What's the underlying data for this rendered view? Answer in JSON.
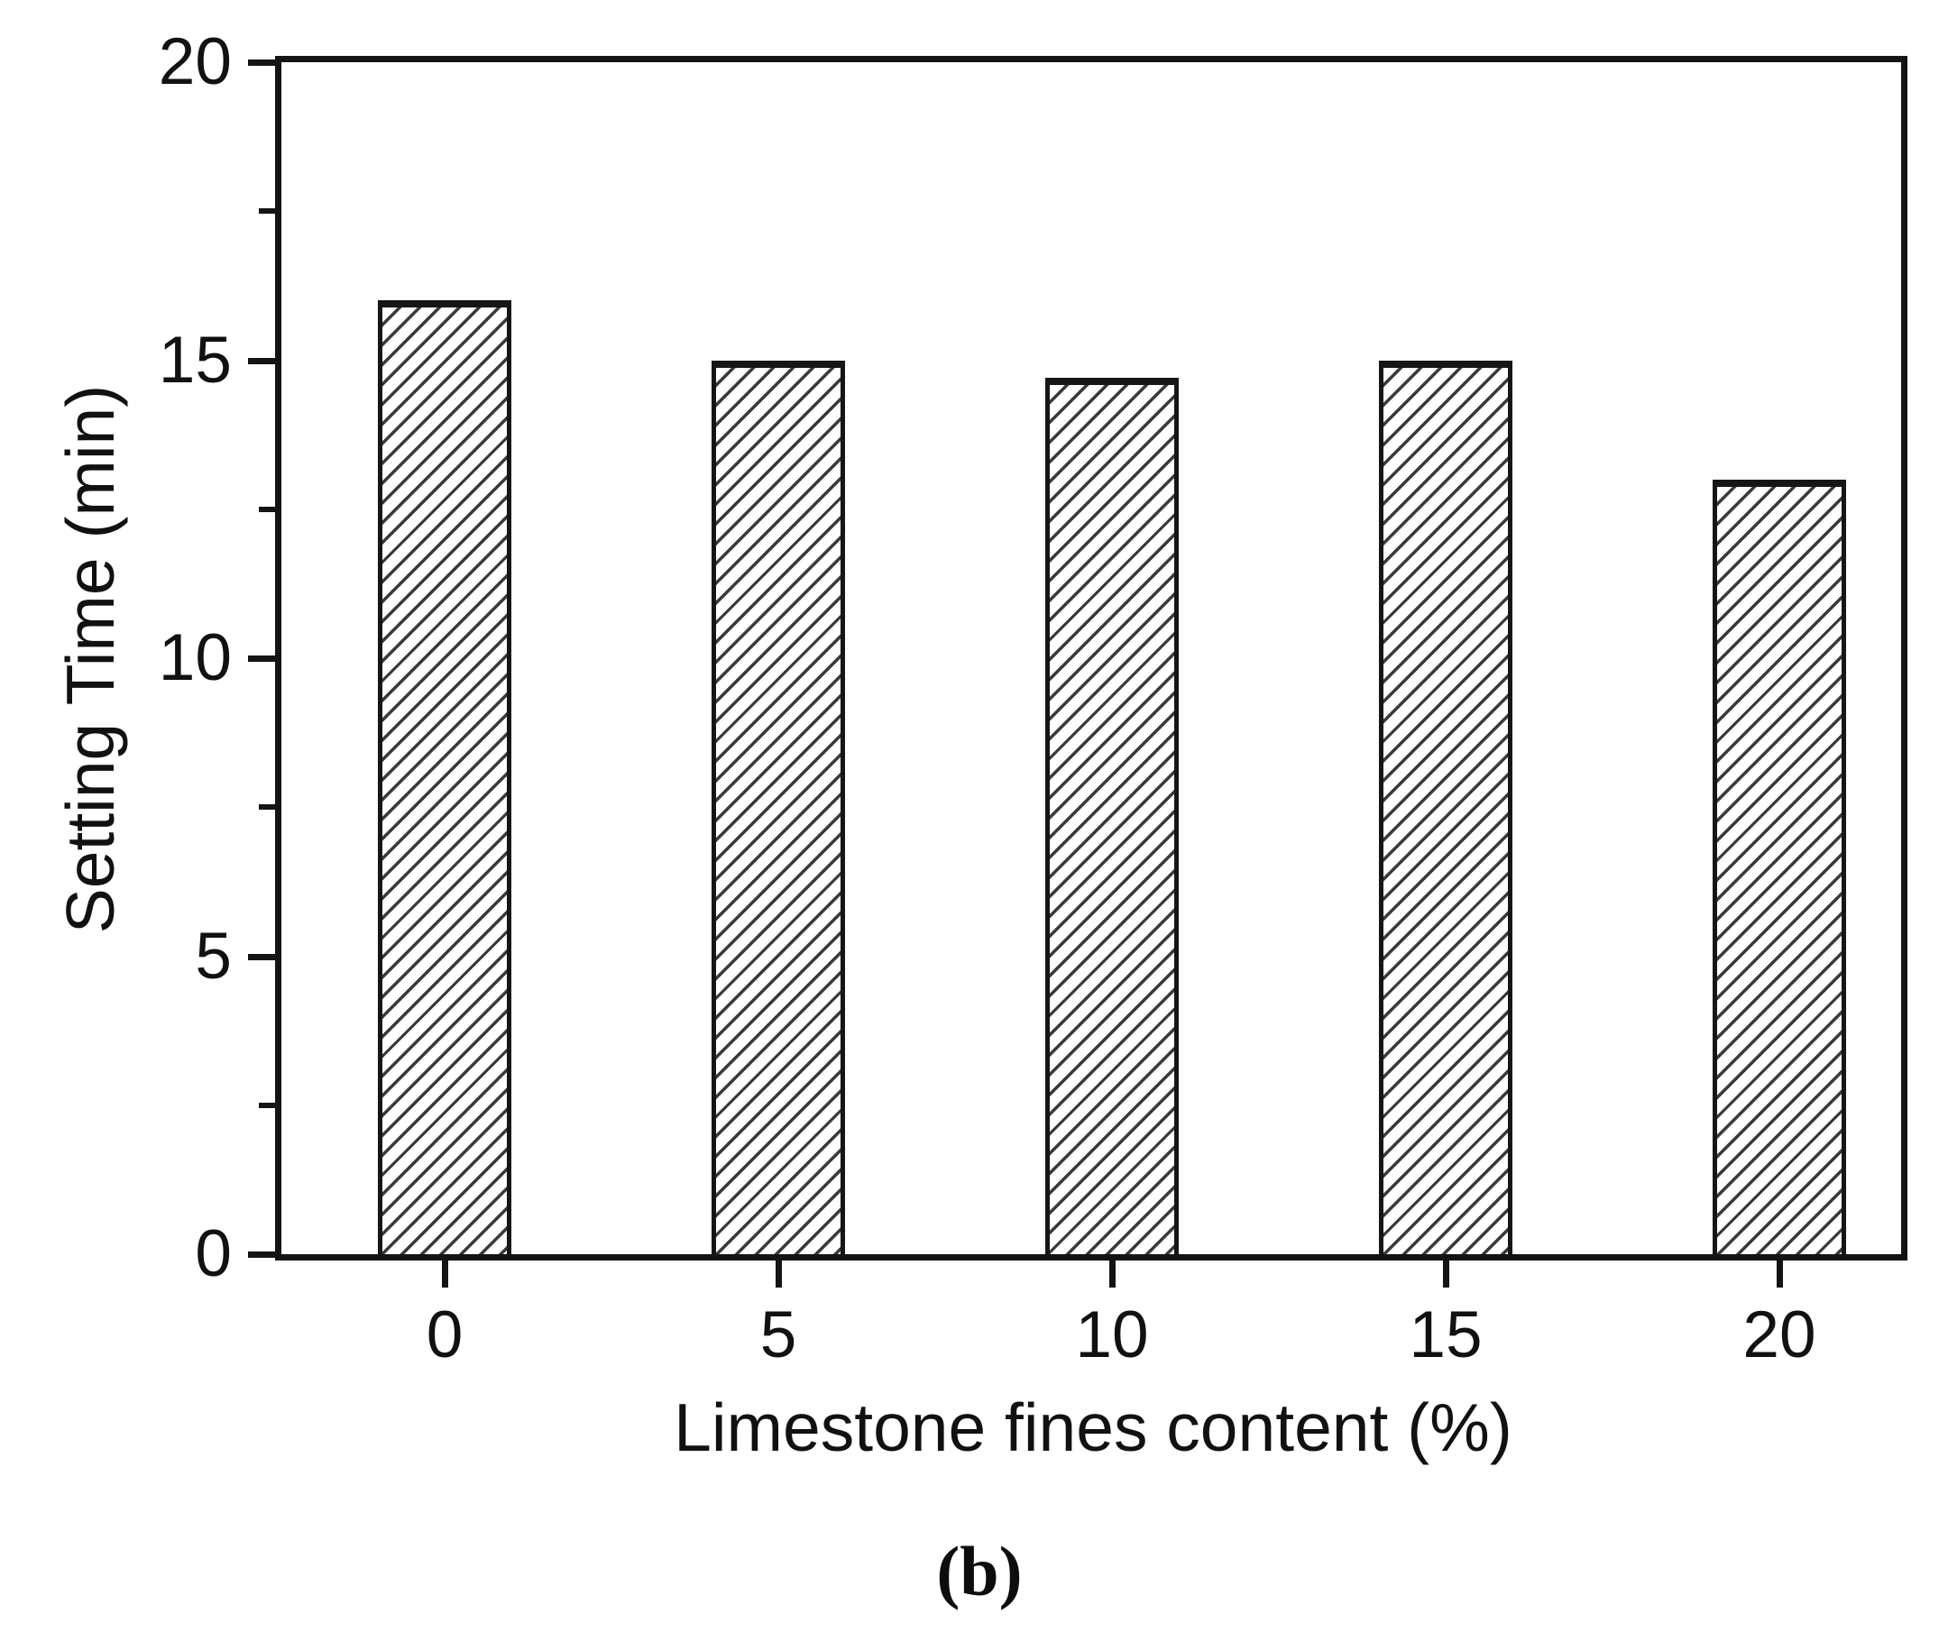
{
  "figure": {
    "caption": "(b)"
  },
  "chart_data": {
    "type": "bar",
    "categories": [
      "0",
      "5",
      "10",
      "15",
      "20"
    ],
    "values": [
      16,
      15,
      14.7,
      15,
      13
    ],
    "title": "",
    "xlabel": "Limestone fines content (%)",
    "ylabel": "Setting Time (min)",
    "ylim": [
      0,
      20
    ],
    "yticks": [
      0,
      5,
      10,
      15,
      20
    ],
    "yticks_minor": [
      2.5,
      7.5,
      12.5,
      17.5
    ],
    "bar_fill": "#ffffff",
    "bar_hatch": "diagonal-forward",
    "hatch_color": "#3a3a3a",
    "axis_color": "#141414",
    "text_color": "#111111",
    "grid": false,
    "legend": null
  }
}
